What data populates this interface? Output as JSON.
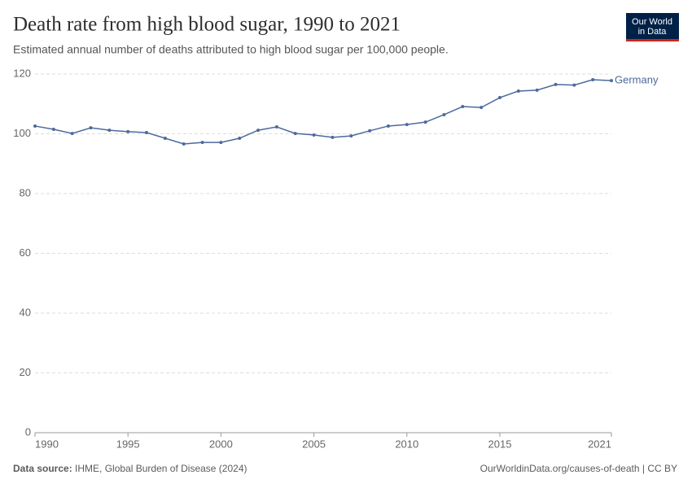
{
  "header": {
    "logo": [
      "Our World",
      "in Data"
    ]
  },
  "chart_data": {
    "type": "line",
    "title": "Death rate from high blood sugar, 1990 to 2021",
    "subtitle": "Estimated annual number of deaths attributed to high blood sugar per 100,000 people.",
    "x": [
      1990,
      1991,
      1992,
      1993,
      1994,
      1995,
      1996,
      1997,
      1998,
      1999,
      2000,
      2001,
      2002,
      2003,
      2004,
      2005,
      2006,
      2007,
      2008,
      2009,
      2010,
      2011,
      2012,
      2013,
      2014,
      2015,
      2016,
      2017,
      2018,
      2019,
      2020,
      2021
    ],
    "series": [
      {
        "name": "Germany",
        "color": "#4c6a9c",
        "values": [
          102.6,
          101.5,
          100.1,
          102.0,
          101.2,
          100.7,
          100.4,
          98.5,
          96.6,
          97.1,
          97.1,
          98.5,
          101.2,
          102.3,
          100.1,
          99.6,
          98.8,
          99.3,
          101.0,
          102.6,
          103.1,
          103.9,
          106.4,
          109.1,
          108.8,
          112.1,
          114.3,
          114.6,
          116.5,
          116.3,
          118.1,
          117.8
        ]
      }
    ],
    "xlim": [
      1990,
      2021
    ],
    "xticks": [
      1990,
      1995,
      2000,
      2005,
      2010,
      2015,
      2021
    ],
    "ylim": [
      0,
      120
    ],
    "yticks": [
      0,
      20,
      40,
      60,
      80,
      100,
      120
    ],
    "grid": true
  },
  "footer": {
    "source_label": "Data source:",
    "source": "IHME, Global Burden of Disease (2024)",
    "link": "OurWorldinData.org/causes-of-death | CC BY"
  }
}
